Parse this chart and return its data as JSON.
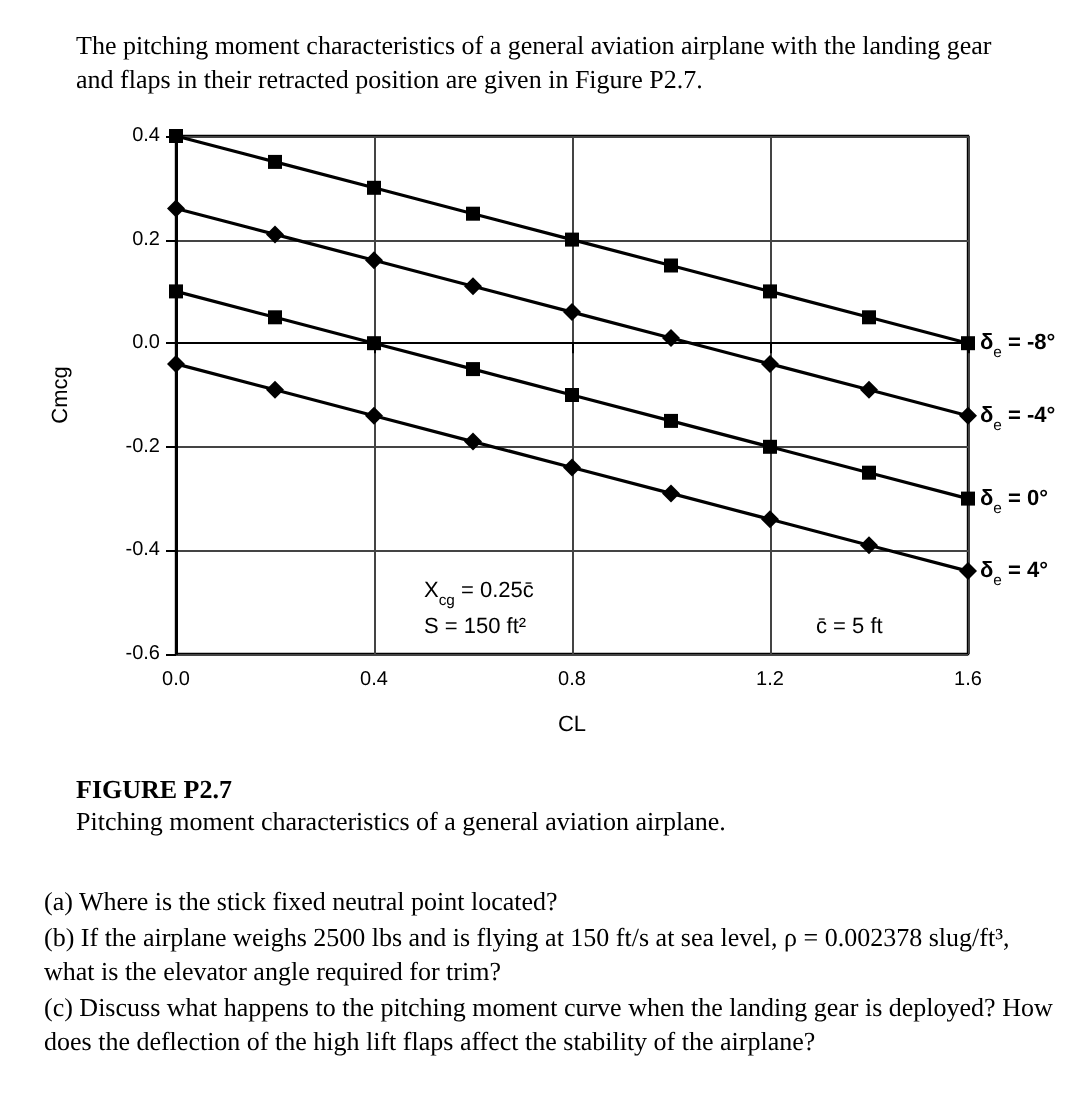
{
  "chart_data": {
    "type": "line",
    "title": "The pitching moment characteristics of a general aviation airplane with the landing gear and flaps in their retracted position are given in Figure P2.7.",
    "xlabel": "CL",
    "ylabel": "Cmcg",
    "x": [
      0,
      0.2,
      0.4,
      0.6,
      0.8,
      1.0,
      1.2,
      1.4,
      1.6
    ],
    "series": [
      {
        "name": "δ$_{e}$ = -8°",
        "color": "#000000",
        "marker": "square",
        "values": [
          0.4,
          0.35,
          0.3,
          0.25,
          0.2,
          0.15,
          0.1,
          0.05,
          0.0
        ]
      },
      {
        "name": "δ$_{e}$ = -4°",
        "color": "#000000",
        "marker": "diamond",
        "values": [
          0.26,
          0.21,
          0.16,
          0.11,
          0.06,
          0.01,
          -0.04,
          -0.09,
          -0.14
        ]
      },
      {
        "name": "δ$_{e}$ = 0°",
        "color": "#000000",
        "marker": "square",
        "values": [
          0.1,
          0.05,
          0.0,
          -0.05,
          -0.1,
          -0.15,
          -0.2,
          -0.25,
          -0.3
        ]
      },
      {
        "name": "δ$_{e}$ = 4°",
        "color": "#000000",
        "marker": "diamond",
        "values": [
          -0.04,
          -0.09,
          -0.14,
          -0.19,
          -0.24,
          -0.29,
          -0.34,
          -0.39,
          -0.44
        ]
      }
    ],
    "xlim": [
      0,
      1.6
    ],
    "xticks": [
      {
        "value": 0,
        "label": "0.0"
      },
      0.4,
      0.8,
      1.2,
      1.6
    ],
    "ylim": [
      -0.6,
      0.4
    ],
    "yticks": [
      -0.6,
      -0.4,
      -0.2,
      {
        "value": 0,
        "label": "0.0"
      },
      0.2,
      0.4
    ],
    "grid": true,
    "legend": "right",
    "line_style": "solid",
    "annotations": [
      "X$_{cg}$ = 0.25c̄",
      "S = 150 ft²",
      "c̄ = 5 ft",
      "FIGURE P2.7",
      "Pitching moment characteristics of a general aviation airplane.",
      "(a) Where is the stick fixed neutral point located?",
      "(b) If the airplane weighs 2500 lbs and is flying at 150 ft/s at sea level, ρ = 0.002378 slug/ft³, what is the elevator angle required for trim?",
      "(c) Discuss what happens to the pitching moment curve when the landing gear is deployed? How does the deflection of the high lift flaps affect the stability of the airplane?"
    ]
  }
}
